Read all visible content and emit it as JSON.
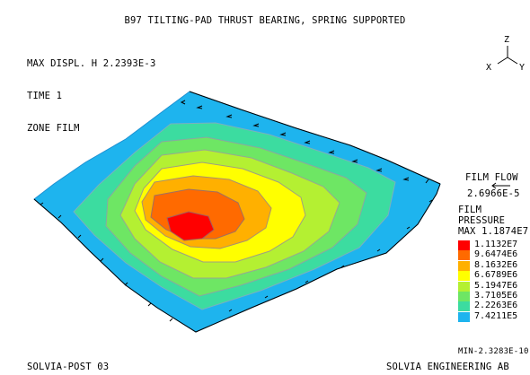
{
  "title": "B97 TILTING-PAD THRUST BEARING, SPRING SUPPORTED",
  "header": {
    "max_displ": "MAX DISPL. H 2.2393E-3",
    "time": "TIME 1",
    "zone": "ZONE FILM"
  },
  "axes_triad": {
    "z": "Z",
    "x": "X",
    "y": "Y"
  },
  "film_flow": {
    "label": "FILM FLOW",
    "value": "2.6966E-5"
  },
  "pressure": {
    "label1": "FILM",
    "label2": "PRESSURE",
    "max": "MAX 1.1874E7"
  },
  "legend": [
    {
      "value": "1.1132E7",
      "color": "#ff0000"
    },
    {
      "value": "9.6474E6",
      "color": "#ff6a00"
    },
    {
      "value": "8.1632E6",
      "color": "#ffb000"
    },
    {
      "value": "6.6789E6",
      "color": "#ffff00"
    },
    {
      "value": "5.1947E6",
      "color": "#b4f032"
    },
    {
      "value": "3.7105E6",
      "color": "#6ee664"
    },
    {
      "value": "2.2263E6",
      "color": "#3cdca0"
    },
    {
      "value": "7.4211E5",
      "color": "#1eb4ee"
    }
  ],
  "min": "MIN-2.3283E-10",
  "footer": {
    "left": "SOLVIA-POST 03",
    "right": "SOLVIA ENGINEERING AB"
  }
}
